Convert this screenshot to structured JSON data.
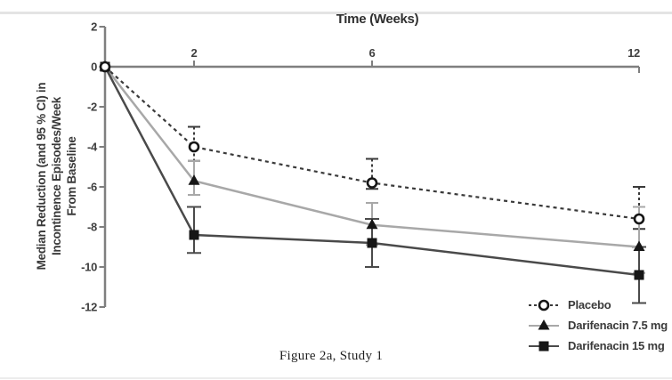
{
  "figure": {
    "caption": "Figure 2a, Study 1"
  },
  "chart_data": {
    "type": "line",
    "title": "Time (Weeks)",
    "xlabel": "Time (Weeks)",
    "ylabel": "Median Reduction (and 95 % CI) in Incontinence Episodes/Week From Baseline",
    "ylabel_lines": [
      "Median Reduction (and 95 % CI) in",
      "Incontinence Episodes/Week",
      "From Baseline"
    ],
    "x": [
      0,
      2,
      6,
      12
    ],
    "x_ticks": [
      2,
      6,
      12
    ],
    "y_ticks": [
      2,
      0,
      -2,
      -4,
      -6,
      -8,
      -10,
      -12
    ],
    "xlim": [
      0,
      12
    ],
    "ylim": [
      -12,
      2
    ],
    "grid": false,
    "legend_position": "bottom-right",
    "error_bars": "95% CI whiskers",
    "series": [
      {
        "name": "Placebo",
        "slug": "placebo",
        "marker": "circle-open",
        "line": "dashed",
        "color": "#3a3a3a",
        "values": [
          0,
          -4.0,
          -5.8,
          -7.6
        ],
        "ci_high": [
          null,
          -3.0,
          -4.6,
          -6.0
        ],
        "ci_low": [
          null,
          -4.7,
          -6.1,
          -8.1
        ]
      },
      {
        "name": "Darifenacin 7.5 mg",
        "slug": "darifenacin-7-5mg",
        "marker": "triangle-filled",
        "line": "solid",
        "color": "#a8a8a8",
        "values": [
          0,
          -5.7,
          -7.9,
          -9.0
        ],
        "ci_high": [
          null,
          -4.7,
          -6.8,
          -7.0
        ],
        "ci_low": [
          null,
          -6.4,
          -8.9,
          -10.3
        ]
      },
      {
        "name": "Darifenacin 15 mg",
        "slug": "darifenacin-15mg",
        "marker": "square-filled",
        "line": "solid",
        "color": "#4a4a4a",
        "values": [
          0,
          -8.4,
          -8.8,
          -10.4
        ],
        "ci_high": [
          null,
          -7.0,
          -7.6,
          -9.0
        ],
        "ci_low": [
          null,
          -9.3,
          -10.0,
          -11.8
        ]
      }
    ],
    "colors": {
      "axis": "#7f7f7f",
      "tick_text": "#3f3f3f",
      "marker": "#161616",
      "title_text": "#2f2f2f"
    }
  }
}
